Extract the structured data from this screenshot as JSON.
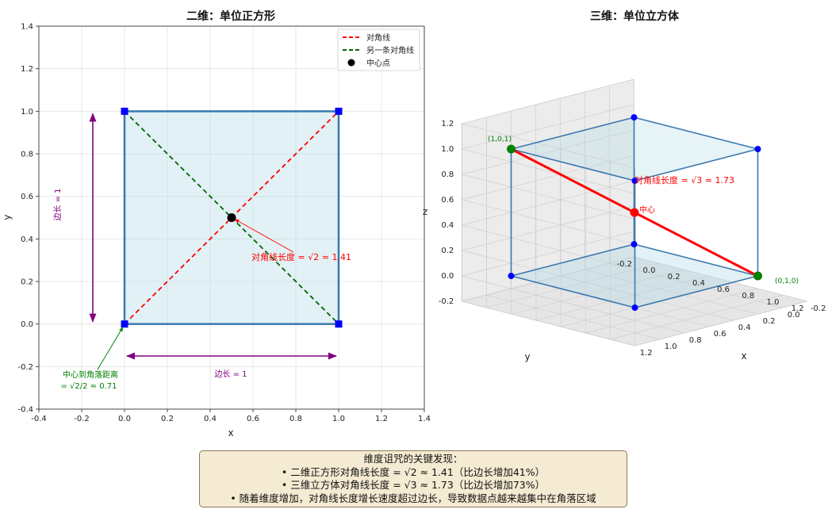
{
  "chart_data": [
    {
      "type": "line",
      "title": "二维：单位正方形",
      "xlabel": "x",
      "ylabel": "y",
      "xlim": [
        -0.4,
        1.4
      ],
      "ylim": [
        -0.4,
        1.4
      ],
      "xticks": [
        "-0.4",
        "-0.2",
        "0.0",
        "0.2",
        "0.4",
        "0.6",
        "0.8",
        "1.0",
        "1.2",
        "1.4"
      ],
      "yticks": [
        "-0.4",
        "-0.2",
        "0.0",
        "0.2",
        "0.4",
        "0.6",
        "0.8",
        "1.0",
        "1.2",
        "1.4"
      ],
      "grid": true,
      "legend_position": "top-right",
      "legend": [
        "对角线",
        "另一条对角线",
        "中心点"
      ],
      "square": [
        [
          0,
          0
        ],
        [
          1,
          0
        ],
        [
          1,
          1
        ],
        [
          0,
          1
        ]
      ],
      "series": [
        {
          "name": "对角线",
          "x": [
            0,
            1
          ],
          "y": [
            0,
            1
          ],
          "color": "#ff0000",
          "style": "dashed"
        },
        {
          "name": "另一条对角线",
          "x": [
            0,
            1
          ],
          "y": [
            1,
            0
          ],
          "color": "#006400",
          "style": "dashed"
        }
      ],
      "center": {
        "name": "中心点",
        "x": 0.5,
        "y": 0.5
      },
      "annotations": {
        "diag": "对角线长度 = √2 ≈ 1.41",
        "corner_line1": "中心到角落距离",
        "corner_line2": "= √2/2 ≈ 0.71",
        "side_h": "边长 = 1",
        "side_v": "边长 = 1"
      }
    },
    {
      "type": "scatter",
      "title": "三维：单位立方体",
      "xlabel": "x",
      "ylabel": "y",
      "zlabel": "z",
      "xlim": [
        -0.2,
        1.2
      ],
      "ylim": [
        -0.2,
        1.2
      ],
      "zlim": [
        -0.2,
        1.2
      ],
      "ticks": [
        "-0.2",
        "0.0",
        "0.2",
        "0.4",
        "0.6",
        "0.8",
        "1.0",
        "1.2"
      ],
      "vertices": [
        [
          0,
          0,
          0
        ],
        [
          1,
          0,
          0
        ],
        [
          0,
          1,
          0
        ],
        [
          1,
          1,
          0
        ],
        [
          0,
          0,
          1
        ],
        [
          1,
          0,
          1
        ],
        [
          0,
          1,
          1
        ],
        [
          1,
          1,
          1
        ]
      ],
      "diagonal": {
        "from": [
          0,
          1,
          0
        ],
        "to": [
          1,
          0,
          1
        ],
        "color": "#ff0000"
      },
      "center": [
        0.5,
        0.5,
        0.5
      ],
      "annotations": {
        "p101": "(1,0,1)",
        "p010": "(0,1,0)",
        "diag": "对角线长度 = √3 ≈ 1.73",
        "center": "中心"
      }
    }
  ],
  "summary": {
    "title": "维度诅咒的关键发现：",
    "line1": "• 二维正方形对角线长度 = √2 ≈ 1.41（比边长增加41%）",
    "line2": "• 三维立方体对角线长度 = √3 ≈ 1.73（比边长增加73%）",
    "line3": "• 随着维度增加，对角线长度增长速度超过边长，导致数据点越来越集中在角落区域"
  },
  "colors": {
    "edge": "#3b78ae",
    "fill": "#add8e6",
    "vertex_marker": "#0000ff",
    "diagonal": "#ff0000",
    "other_diagonal": "#006400",
    "annotation_side": "#800080",
    "annotation_corner": "#008000"
  }
}
